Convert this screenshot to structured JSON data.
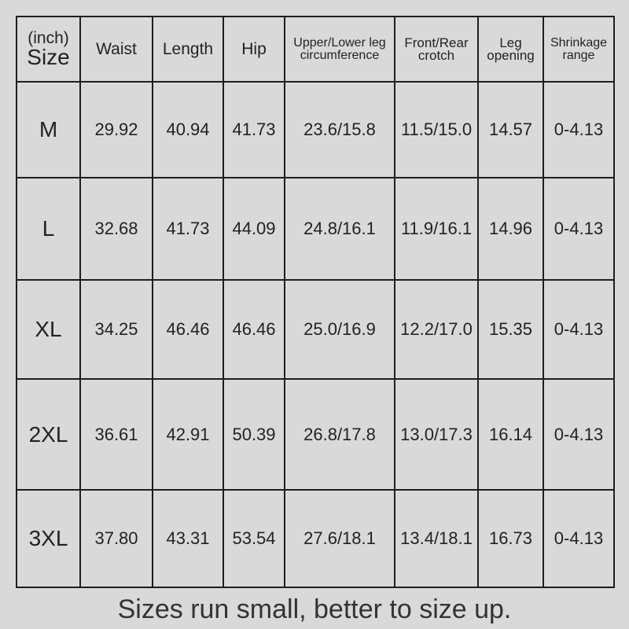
{
  "header": {
    "size_unit": "(inch)",
    "size_label": "Size",
    "columns": [
      "Waist",
      "Length",
      "Hip",
      "Upper/Lower leg circumference",
      "Front/Rear crotch",
      "Leg opening",
      "Shrinkage range"
    ]
  },
  "rows": [
    {
      "size": "M",
      "values": [
        "29.92",
        "40.94",
        "41.73",
        "23.6/15.8",
        "11.5/15.0",
        "14.57",
        "0-4.13"
      ]
    },
    {
      "size": "L",
      "values": [
        "32.68",
        "41.73",
        "44.09",
        "24.8/16.1",
        "11.9/16.1",
        "14.96",
        "0-4.13"
      ]
    },
    {
      "size": "XL",
      "values": [
        "34.25",
        "46.46",
        "46.46",
        "25.0/16.9",
        "12.2/17.0",
        "15.35",
        "0-4.13"
      ]
    },
    {
      "size": "2XL",
      "values": [
        "36.61",
        "42.91",
        "50.39",
        "26.8/17.8",
        "13.0/17.3",
        "16.14",
        "0-4.13"
      ]
    },
    {
      "size": "3XL",
      "values": [
        "37.80",
        "43.31",
        "53.54",
        "27.6/18.1",
        "13.4/18.1",
        "16.73",
        "0-4.13"
      ]
    }
  ],
  "footer": "Sizes run small, better to size up."
}
